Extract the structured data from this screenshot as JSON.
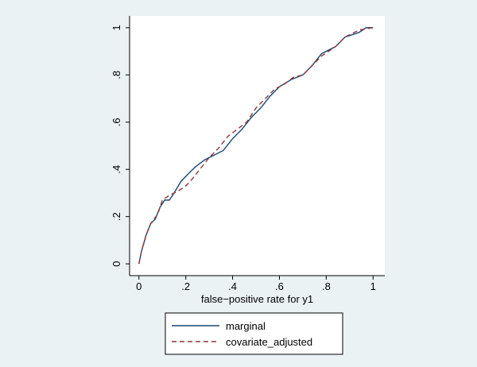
{
  "chart_data": {
    "type": "line",
    "xlabel": "false−positive rate for y1",
    "xlim": [
      -0.04,
      1.05
    ],
    "ylim": [
      -0.05,
      1.05
    ],
    "xticks": [
      {
        "value": 0,
        "label": "0"
      },
      {
        "value": 0.2,
        "label": ".2"
      },
      {
        "value": 0.4,
        "label": ".4"
      },
      {
        "value": 0.6,
        "label": ".6"
      },
      {
        "value": 0.8,
        "label": ".8"
      },
      {
        "value": 1,
        "label": "1"
      }
    ],
    "yticks": [
      {
        "value": 0,
        "label": "0"
      },
      {
        "value": 0.2,
        "label": ".2"
      },
      {
        "value": 0.4,
        "label": ".4"
      },
      {
        "value": 0.6,
        "label": ".6"
      },
      {
        "value": 0.8,
        "label": ".8"
      },
      {
        "value": 1,
        "label": "1"
      }
    ],
    "legend": "bottom",
    "series": [
      {
        "name": "marginal",
        "color": "#1a476f",
        "dash": "solid",
        "x": [
          0,
          0.01,
          0.03,
          0.05,
          0.07,
          0.09,
          0.11,
          0.13,
          0.15,
          0.18,
          0.21,
          0.24,
          0.28,
          0.32,
          0.36,
          0.4,
          0.44,
          0.48,
          0.52,
          0.56,
          0.6,
          0.65,
          0.7,
          0.74,
          0.78,
          0.84,
          0.88,
          0.94,
          0.97,
          1
        ],
        "values": [
          0,
          0.05,
          0.12,
          0.17,
          0.19,
          0.24,
          0.27,
          0.27,
          0.3,
          0.35,
          0.38,
          0.41,
          0.44,
          0.46,
          0.48,
          0.53,
          0.57,
          0.62,
          0.66,
          0.71,
          0.75,
          0.78,
          0.8,
          0.84,
          0.89,
          0.92,
          0.96,
          0.98,
          1,
          1
        ]
      },
      {
        "name": "covariate_adjusted",
        "color": "#90353b",
        "dash": "dashed",
        "x": [
          0,
          0.01,
          0.03,
          0.05,
          0.08,
          0.1,
          0.13,
          0.17,
          0.2,
          0.22,
          0.26,
          0.3,
          0.34,
          0.38,
          0.42,
          0.46,
          0.5,
          0.54,
          0.58,
          0.62,
          0.66,
          0.7,
          0.74,
          0.78,
          0.84,
          0.88,
          0.94,
          1
        ],
        "values": [
          0,
          0.05,
          0.12,
          0.17,
          0.21,
          0.27,
          0.29,
          0.31,
          0.33,
          0.35,
          0.4,
          0.45,
          0.49,
          0.54,
          0.57,
          0.6,
          0.66,
          0.7,
          0.74,
          0.76,
          0.79,
          0.8,
          0.84,
          0.88,
          0.92,
          0.96,
          0.99,
          1
        ]
      }
    ]
  }
}
